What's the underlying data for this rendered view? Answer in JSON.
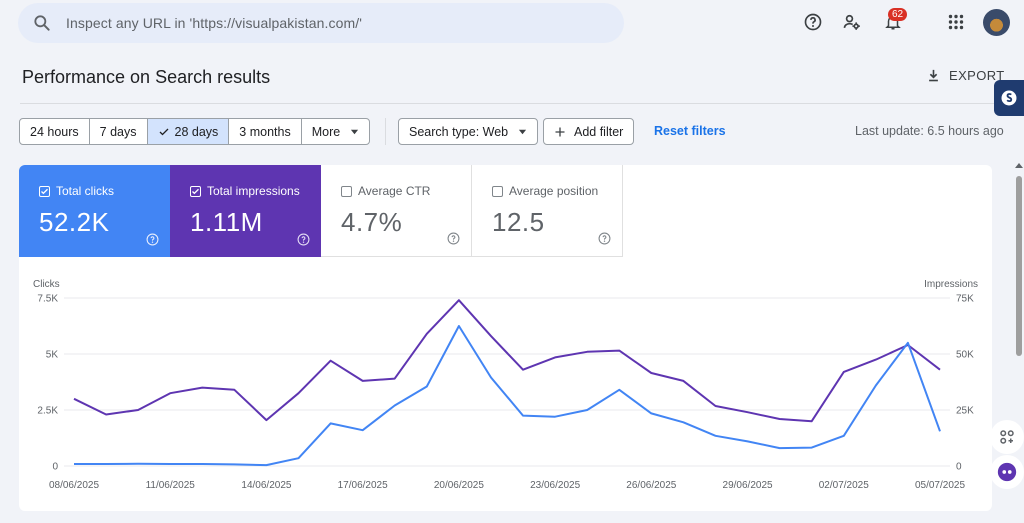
{
  "search": {
    "placeholder": "Inspect any URL in 'https://visualpakistan.com/'"
  },
  "header": {
    "notifications_count": "62"
  },
  "page": {
    "title": "Performance on Search results",
    "export_label": "EXPORT"
  },
  "filters": {
    "date_options": [
      "24 hours",
      "7 days",
      "28 days",
      "3 months",
      "More"
    ],
    "selected_date": "28 days",
    "search_type": "Search type: Web",
    "add_filter": "Add filter",
    "reset": "Reset filters",
    "last_update": "Last update: 6.5 hours ago"
  },
  "metrics": [
    {
      "label": "Total clicks",
      "value": "52.2K",
      "checked": true,
      "color": "#4285f4"
    },
    {
      "label": "Total impressions",
      "value": "1.11M",
      "checked": true,
      "color": "#5e35b1"
    },
    {
      "label": "Average CTR",
      "value": "4.7%",
      "checked": false
    },
    {
      "label": "Average position",
      "value": "12.5",
      "checked": false
    }
  ],
  "chart_data": {
    "type": "line",
    "x": [
      "08/06/2025",
      "09/06/2025",
      "10/06/2025",
      "11/06/2025",
      "12/06/2025",
      "13/06/2025",
      "14/06/2025",
      "15/06/2025",
      "16/06/2025",
      "17/06/2025",
      "18/06/2025",
      "19/06/2025",
      "20/06/2025",
      "21/06/2025",
      "22/06/2025",
      "23/06/2025",
      "24/06/2025",
      "25/06/2025",
      "26/06/2025",
      "27/06/2025",
      "28/06/2025",
      "29/06/2025",
      "30/06/2025",
      "01/07/2025",
      "02/07/2025",
      "03/07/2025",
      "04/07/2025",
      "05/07/2025"
    ],
    "x_ticks": [
      "08/06/2025",
      "11/06/2025",
      "14/06/2025",
      "17/06/2025",
      "20/06/2025",
      "23/06/2025",
      "26/06/2025",
      "29/06/2025",
      "02/07/2025",
      "05/07/2025"
    ],
    "left_axis": {
      "label": "Clicks",
      "ticks": [
        "0",
        "2.5K",
        "5K",
        "7.5K"
      ],
      "range": [
        0,
        7500
      ]
    },
    "right_axis": {
      "label": "Impressions",
      "ticks": [
        "0",
        "25K",
        "50K",
        "75K"
      ],
      "range": [
        0,
        75000
      ]
    },
    "series": [
      {
        "name": "Clicks",
        "axis": "left",
        "color": "#4285f4",
        "values": [
          90,
          90,
          100,
          90,
          90,
          70,
          40,
          350,
          1900,
          1600,
          2700,
          3550,
          6250,
          3950,
          2250,
          2200,
          2500,
          3400,
          2350,
          1950,
          1350,
          1100,
          800,
          820,
          1350,
          3600,
          5500,
          1550
        ]
      },
      {
        "name": "Impressions",
        "axis": "right",
        "color": "#5e35b1",
        "values": [
          30000,
          23000,
          25000,
          32500,
          35000,
          34000,
          20500,
          32500,
          47000,
          38000,
          39000,
          59000,
          74000,
          58000,
          43000,
          48500,
          51000,
          51500,
          41500,
          38000,
          26800,
          24000,
          21000,
          20000,
          42000,
          47500,
          54000,
          43000
        ]
      }
    ],
    "grid": true
  }
}
